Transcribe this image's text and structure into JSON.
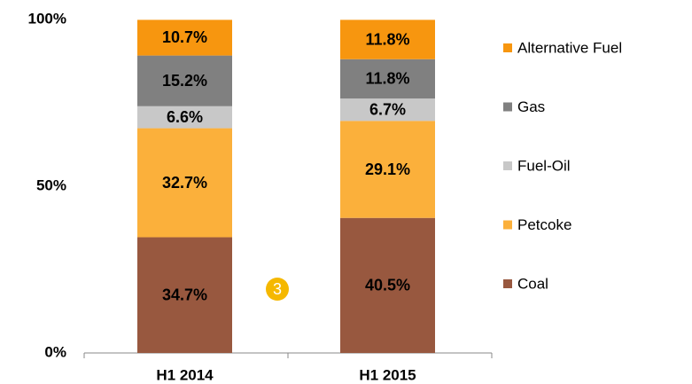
{
  "chart_data": {
    "type": "stacked_bar",
    "categories": [
      "H1 2014",
      "H1 2015"
    ],
    "series": [
      {
        "name": "Coal",
        "color": "#98583f",
        "values": [
          34.7,
          40.5
        ],
        "value_labels": [
          "34.7%",
          "40.5%"
        ]
      },
      {
        "name": "Petcoke",
        "color": "#fbb03b",
        "values": [
          32.7,
          29.1
        ],
        "value_labels": [
          "32.7%",
          "29.1%"
        ]
      },
      {
        "name": "Fuel-Oil",
        "color": "#c8c8c8",
        "values": [
          6.6,
          6.7
        ],
        "value_labels": [
          "6.6%",
          "6.7%"
        ]
      },
      {
        "name": "Gas",
        "color": "#808080",
        "values": [
          15.2,
          11.8
        ],
        "value_labels": [
          "15.2%",
          "11.8%"
        ]
      },
      {
        "name": "Alternative Fuel",
        "color": "#f7960f",
        "values": [
          10.7,
          11.8
        ],
        "value_labels": [
          "10.7%",
          "11.8%"
        ]
      }
    ],
    "ylim": [
      0,
      100
    ],
    "yticks": [
      {
        "value": 0,
        "label": "0%"
      },
      {
        "value": 50,
        "label": "50%"
      },
      {
        "value": 100,
        "label": "100%"
      }
    ],
    "grid": false,
    "legend": "right"
  },
  "page_number": "3"
}
